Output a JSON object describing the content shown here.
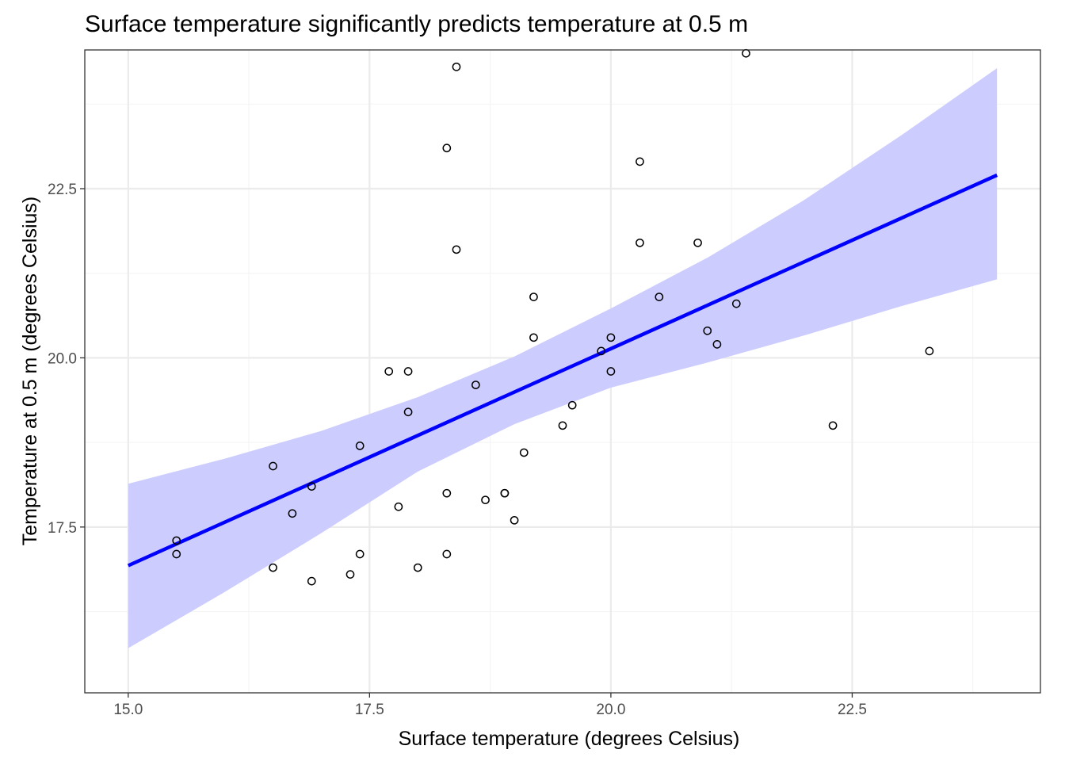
{
  "chart_data": {
    "type": "scatter",
    "title": "Surface temperature significantly predicts temperature at 0.5 m",
    "xlabel": "Surface temperature (degrees Celsius)",
    "ylabel": "Temperature at 0.5 m (degrees Celsius)",
    "xlim": [
      14.55,
      24.45
    ],
    "ylim": [
      15.05,
      24.55
    ],
    "x_major_ticks": [
      15.0,
      17.5,
      20.0,
      22.5
    ],
    "x_tick_labels": [
      "15.0",
      "17.5",
      "20.0",
      "22.5"
    ],
    "x_minor_ticks": [
      16.25,
      18.75,
      21.25,
      23.75
    ],
    "y_major_ticks": [
      17.5,
      20.0,
      22.5
    ],
    "y_tick_labels": [
      "17.5",
      "20.0",
      "22.5"
    ],
    "y_minor_ticks": [
      16.25,
      18.75,
      21.25,
      23.75
    ],
    "grid": true,
    "legend": "none",
    "colors": {
      "points_stroke": "#000000",
      "fit_line": "#0000ff",
      "confidence_band": "#ccccff",
      "panel_border": "#333333",
      "grid_major": "#ebebeb",
      "grid_minor": "#f5f5f5"
    },
    "points": [
      {
        "x": 15.5,
        "y": 17.3
      },
      {
        "x": 15.5,
        "y": 17.1
      },
      {
        "x": 16.5,
        "y": 18.4
      },
      {
        "x": 16.5,
        "y": 16.9
      },
      {
        "x": 16.7,
        "y": 17.7
      },
      {
        "x": 16.9,
        "y": 18.1
      },
      {
        "x": 16.9,
        "y": 16.7
      },
      {
        "x": 17.3,
        "y": 16.8
      },
      {
        "x": 17.4,
        "y": 18.7
      },
      {
        "x": 17.4,
        "y": 17.1
      },
      {
        "x": 17.7,
        "y": 19.8
      },
      {
        "x": 17.8,
        "y": 17.8
      },
      {
        "x": 17.9,
        "y": 19.8
      },
      {
        "x": 17.9,
        "y": 19.2
      },
      {
        "x": 18.0,
        "y": 16.9
      },
      {
        "x": 18.3,
        "y": 23.1
      },
      {
        "x": 18.3,
        "y": 18.0
      },
      {
        "x": 18.3,
        "y": 17.1
      },
      {
        "x": 18.4,
        "y": 24.3
      },
      {
        "x": 18.4,
        "y": 21.6
      },
      {
        "x": 18.6,
        "y": 19.6
      },
      {
        "x": 18.7,
        "y": 17.9
      },
      {
        "x": 18.9,
        "y": 18.0
      },
      {
        "x": 18.9,
        "y": 18.0
      },
      {
        "x": 19.0,
        "y": 17.6
      },
      {
        "x": 19.1,
        "y": 18.6
      },
      {
        "x": 19.2,
        "y": 20.9
      },
      {
        "x": 19.2,
        "y": 20.3
      },
      {
        "x": 19.5,
        "y": 19.0
      },
      {
        "x": 19.6,
        "y": 19.3
      },
      {
        "x": 19.9,
        "y": 20.1
      },
      {
        "x": 20.0,
        "y": 20.3
      },
      {
        "x": 20.0,
        "y": 19.8
      },
      {
        "x": 20.3,
        "y": 22.9
      },
      {
        "x": 20.3,
        "y": 21.7
      },
      {
        "x": 20.5,
        "y": 20.9
      },
      {
        "x": 20.9,
        "y": 21.7
      },
      {
        "x": 21.0,
        "y": 20.4
      },
      {
        "x": 21.1,
        "y": 20.2
      },
      {
        "x": 21.3,
        "y": 20.8
      },
      {
        "x": 21.4,
        "y": 24.5
      },
      {
        "x": 22.3,
        "y": 19.0
      },
      {
        "x": 23.3,
        "y": 20.1
      }
    ],
    "fit_line": {
      "x": [
        15.0,
        24.0
      ],
      "y": [
        16.93,
        22.7
      ]
    },
    "confidence_band": {
      "x": [
        15.0,
        16.0,
        17.0,
        18.0,
        19.0,
        20.0,
        21.0,
        22.0,
        23.0,
        24.0
      ],
      "upper": [
        18.14,
        18.51,
        18.92,
        19.42,
        20.02,
        20.73,
        21.48,
        22.33,
        23.28,
        24.28
      ],
      "lower": [
        15.71,
        16.54,
        17.41,
        18.32,
        19.02,
        19.56,
        19.93,
        20.33,
        20.76,
        21.16
      ]
    }
  }
}
